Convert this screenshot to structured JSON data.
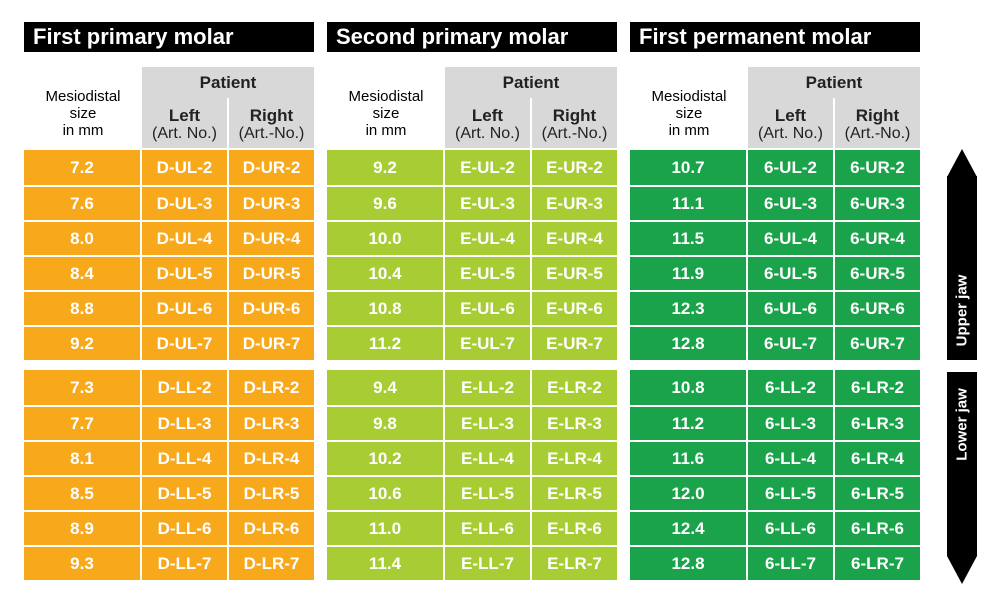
{
  "header": {
    "size_label_lines": [
      "Mesiodistal",
      "size",
      "in mm"
    ],
    "patient_label": "Patient",
    "left_label": "Left",
    "left_art": "(Art. No.)",
    "right_label": "Right",
    "right_art": "(Art.-No.)"
  },
  "colors": {
    "section_0": "#f7a81b",
    "section_1": "#a8cd34",
    "section_2": "#1aa34a"
  },
  "sections": [
    {
      "title": "First primary molar",
      "upper": [
        [
          "7.2",
          "D-UL-2",
          "D-UR-2"
        ],
        [
          "7.6",
          "D-UL-3",
          "D-UR-3"
        ],
        [
          "8.0",
          "D-UL-4",
          "D-UR-4"
        ],
        [
          "8.4",
          "D-UL-5",
          "D-UR-5"
        ],
        [
          "8.8",
          "D-UL-6",
          "D-UR-6"
        ],
        [
          "9.2",
          "D-UL-7",
          "D-UR-7"
        ]
      ],
      "lower": [
        [
          "7.3",
          "D-LL-2",
          "D-LR-2"
        ],
        [
          "7.7",
          "D-LL-3",
          "D-LR-3"
        ],
        [
          "8.1",
          "D-LL-4",
          "D-LR-4"
        ],
        [
          "8.5",
          "D-LL-5",
          "D-LR-5"
        ],
        [
          "8.9",
          "D-LL-6",
          "D-LR-6"
        ],
        [
          "9.3",
          "D-LL-7",
          "D-LR-7"
        ]
      ]
    },
    {
      "title": "Second primary molar",
      "upper": [
        [
          "9.2",
          "E-UL-2",
          "E-UR-2"
        ],
        [
          "9.6",
          "E-UL-3",
          "E-UR-3"
        ],
        [
          "10.0",
          "E-UL-4",
          "E-UR-4"
        ],
        [
          "10.4",
          "E-UL-5",
          "E-UR-5"
        ],
        [
          "10.8",
          "E-UL-6",
          "E-UR-6"
        ],
        [
          "11.2",
          "E-UL-7",
          "E-UR-7"
        ]
      ],
      "lower": [
        [
          "9.4",
          "E-LL-2",
          "E-LR-2"
        ],
        [
          "9.8",
          "E-LL-3",
          "E-LR-3"
        ],
        [
          "10.2",
          "E-LL-4",
          "E-LR-4"
        ],
        [
          "10.6",
          "E-LL-5",
          "E-LR-5"
        ],
        [
          "11.0",
          "E-LL-6",
          "E-LR-6"
        ],
        [
          "11.4",
          "E-LL-7",
          "E-LR-7"
        ]
      ]
    },
    {
      "title": "First permanent molar",
      "upper": [
        [
          "10.7",
          "6-UL-2",
          "6-UR-2"
        ],
        [
          "11.1",
          "6-UL-3",
          "6-UR-3"
        ],
        [
          "11.5",
          "6-UL-4",
          "6-UR-4"
        ],
        [
          "11.9",
          "6-UL-5",
          "6-UR-5"
        ],
        [
          "12.3",
          "6-UL-6",
          "6-UR-6"
        ],
        [
          "12.8",
          "6-UL-7",
          "6-UR-7"
        ]
      ],
      "lower": [
        [
          "10.8",
          "6-LL-2",
          "6-LR-2"
        ],
        [
          "11.2",
          "6-LL-3",
          "6-LR-3"
        ],
        [
          "11.6",
          "6-LL-4",
          "6-LR-4"
        ],
        [
          "12.0",
          "6-LL-5",
          "6-LR-5"
        ],
        [
          "12.4",
          "6-LL-6",
          "6-LR-6"
        ],
        [
          "12.8",
          "6-LL-7",
          "6-LR-7"
        ]
      ]
    }
  ],
  "jaw": {
    "upper": "Upper jaw",
    "lower": "Lower jaw"
  }
}
